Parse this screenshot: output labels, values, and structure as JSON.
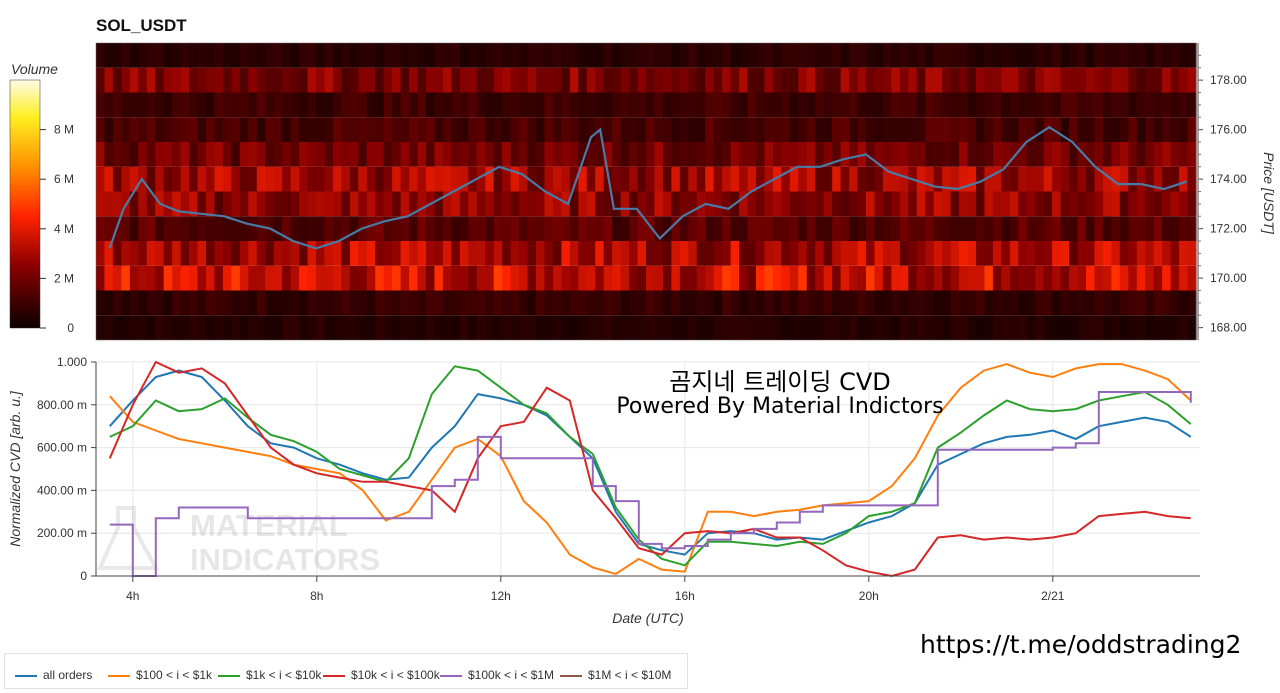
{
  "heatmap": {
    "title": "SOL_USDT",
    "colorbar_title": "Volume",
    "colorbar_ticks": [
      "0",
      "2 M",
      "4 M",
      "6 M",
      "8 M"
    ],
    "price_axis_label": "Price [USDT]",
    "price_ticks": [
      "168.00",
      "170.00",
      "172.00",
      "174.00",
      "176.00",
      "178.00"
    ]
  },
  "cvd": {
    "title_line1": "곰지네 트레이딩 CVD",
    "title_line2": "Powered By Material Indictors",
    "y_axis_label": "Normalized CVD [arb. u.]",
    "x_axis_label": "Date (UTC)",
    "y_ticks": [
      "0",
      "200.00 m",
      "400.00 m",
      "600.00 m",
      "800.00 m",
      "1.000"
    ],
    "x_ticks": [
      "4h",
      "8h",
      "12h",
      "16h",
      "20h",
      "2/21"
    ]
  },
  "watermark": {
    "line1": "MATERIAL",
    "line2": "INDICATORS"
  },
  "footer_url": "https://t.me/oddstrading2",
  "colors": {
    "all_orders": "#1f77b4",
    "s100_1k": "#ff7f0e",
    "s1k_10k": "#2ca02c",
    "s10k_100k": "#d62728",
    "s100k_1m": "#9467bd",
    "s1m_10m": "#8c564b",
    "price_line": "#4a7ba6"
  },
  "legend": [
    {
      "label": "all orders",
      "color": "#1f77b4"
    },
    {
      "label": "$100 < i < $1k",
      "color": "#ff7f0e"
    },
    {
      "label": "$1k < i < $10k",
      "color": "#2ca02c"
    },
    {
      "label": "$10k < i < $100k",
      "color": "#d62728"
    },
    {
      "label": "$100k < i < $1M",
      "color": "#9467bd"
    },
    {
      "label": "$1M < i < $10M",
      "color": "#8c564b"
    }
  ],
  "chart_data": [
    {
      "type": "heatmap",
      "title": "SOL_USDT",
      "ylabel": "Price [USDT]",
      "ylim": [
        167.5,
        179.5
      ],
      "colorbar": {
        "label": "Volume",
        "range": [
          0,
          10000000
        ]
      },
      "bands": [
        {
          "price_low": 167.5,
          "price_high": 168.5,
          "volume": 500000
        },
        {
          "price_low": 168.5,
          "price_high": 169.5,
          "volume": 800000
        },
        {
          "price_low": 169.5,
          "price_high": 170.5,
          "volume": 3500000
        },
        {
          "price_low": 170.5,
          "price_high": 171.5,
          "volume": 3000000
        },
        {
          "price_low": 171.5,
          "price_high": 172.5,
          "volume": 1500000
        },
        {
          "price_low": 172.5,
          "price_high": 173.5,
          "volume": 2500000
        },
        {
          "price_low": 173.5,
          "price_high": 174.5,
          "volume": 2800000
        },
        {
          "price_low": 174.5,
          "price_high": 175.5,
          "volume": 2000000
        },
        {
          "price_low": 175.5,
          "price_high": 176.5,
          "volume": 1200000
        },
        {
          "price_low": 176.5,
          "price_high": 177.5,
          "volume": 1000000
        },
        {
          "price_low": 177.5,
          "price_high": 178.5,
          "volume": 2200000
        },
        {
          "price_low": 178.5,
          "price_high": 179.5,
          "volume": 600000
        }
      ],
      "price_series": {
        "name": "",
        "x_hours": [
          3.5,
          3.8,
          4.2,
          4.6,
          5.0,
          5.5,
          6.0,
          6.5,
          7.0,
          7.5,
          8.0,
          8.5,
          9.0,
          9.5,
          10.0,
          10.5,
          11.0,
          11.5,
          12.0,
          12.5,
          13.0,
          13.5,
          14.0,
          14.2,
          14.5,
          15.0,
          15.5,
          16.0,
          16.5,
          17.0,
          17.5,
          18.0,
          18.5,
          19.0,
          19.5,
          20.0,
          20.5,
          21.0,
          21.5,
          22.0,
          22.5,
          23.0,
          23.5,
          24.0,
          24.5,
          25.0,
          25.5,
          26.0,
          26.5,
          27.0
        ],
        "price": [
          171.2,
          172.8,
          174.0,
          173.0,
          172.7,
          172.6,
          172.5,
          172.2,
          172.0,
          171.5,
          171.2,
          171.5,
          172.0,
          172.3,
          172.5,
          173.0,
          173.5,
          174.0,
          174.5,
          174.2,
          173.5,
          173.0,
          175.7,
          176.0,
          172.8,
          172.8,
          171.6,
          172.5,
          173.0,
          172.8,
          173.5,
          174.0,
          174.5,
          174.5,
          174.8,
          175.0,
          174.3,
          174.0,
          173.7,
          173.6,
          173.9,
          174.4,
          175.5,
          176.1,
          175.5,
          174.5,
          173.8,
          173.8,
          173.6,
          173.9
        ]
      }
    },
    {
      "type": "line",
      "title": "곰지네 트레이딩 CVD",
      "subtitle": "Powered By Material Indictors",
      "xlabel": "Date (UTC)",
      "ylabel": "Normalized CVD [arb. u.]",
      "ylim": [
        0,
        1.0
      ],
      "x_ticks": [
        "4h",
        "8h",
        "12h",
        "16h",
        "20h",
        "2/21"
      ],
      "x_hours": [
        3.5,
        4.0,
        4.5,
        5.0,
        5.5,
        6.0,
        6.5,
        7.0,
        7.5,
        8.0,
        8.5,
        9.0,
        9.5,
        10.0,
        10.5,
        11.0,
        11.5,
        12.0,
        12.5,
        13.0,
        13.5,
        14.0,
        14.5,
        15.0,
        15.5,
        16.0,
        16.5,
        17.0,
        17.5,
        18.0,
        18.5,
        19.0,
        19.5,
        20.0,
        20.5,
        21.0,
        21.5,
        22.0,
        22.5,
        23.0,
        23.5,
        24.0,
        24.5,
        25.0,
        25.5,
        26.0,
        26.5,
        27.0
      ],
      "series": [
        {
          "name": "all orders",
          "values": [
            0.7,
            0.82,
            0.93,
            0.96,
            0.93,
            0.82,
            0.7,
            0.62,
            0.6,
            0.55,
            0.52,
            0.48,
            0.45,
            0.46,
            0.6,
            0.7,
            0.85,
            0.83,
            0.8,
            0.75,
            0.65,
            0.55,
            0.3,
            0.15,
            0.12,
            0.1,
            0.2,
            0.21,
            0.2,
            0.17,
            0.18,
            0.17,
            0.21,
            0.25,
            0.28,
            0.34,
            0.52,
            0.57,
            0.62,
            0.65,
            0.66,
            0.68,
            0.64,
            0.7,
            0.72,
            0.74,
            0.72,
            0.65
          ]
        },
        {
          "name": "$100 < i < $1k",
          "values": [
            0.84,
            0.72,
            0.68,
            0.64,
            0.62,
            0.6,
            0.58,
            0.56,
            0.52,
            0.5,
            0.48,
            0.4,
            0.26,
            0.3,
            0.45,
            0.6,
            0.64,
            0.56,
            0.35,
            0.25,
            0.1,
            0.04,
            0.01,
            0.08,
            0.03,
            0.02,
            0.3,
            0.3,
            0.28,
            0.3,
            0.31,
            0.33,
            0.34,
            0.35,
            0.42,
            0.55,
            0.75,
            0.88,
            0.96,
            0.99,
            0.95,
            0.93,
            0.97,
            0.99,
            0.99,
            0.96,
            0.92,
            0.82
          ]
        },
        {
          "name": "$1k < i < $10k",
          "values": [
            0.65,
            0.7,
            0.82,
            0.77,
            0.78,
            0.83,
            0.74,
            0.66,
            0.63,
            0.58,
            0.5,
            0.47,
            0.44,
            0.55,
            0.85,
            0.98,
            0.96,
            0.88,
            0.8,
            0.76,
            0.65,
            0.57,
            0.32,
            0.17,
            0.08,
            0.05,
            0.16,
            0.16,
            0.15,
            0.14,
            0.16,
            0.15,
            0.2,
            0.28,
            0.3,
            0.34,
            0.6,
            0.67,
            0.75,
            0.82,
            0.78,
            0.77,
            0.78,
            0.82,
            0.84,
            0.86,
            0.8,
            0.71
          ]
        },
        {
          "name": "$10k < i < $100k",
          "values": [
            0.55,
            0.8,
            1.0,
            0.95,
            0.97,
            0.9,
            0.75,
            0.6,
            0.52,
            0.48,
            0.46,
            0.44,
            0.44,
            0.42,
            0.4,
            0.3,
            0.55,
            0.7,
            0.72,
            0.88,
            0.82,
            0.4,
            0.27,
            0.13,
            0.1,
            0.2,
            0.21,
            0.2,
            0.22,
            0.18,
            0.18,
            0.12,
            0.05,
            0.02,
            0.0,
            0.03,
            0.18,
            0.19,
            0.17,
            0.18,
            0.17,
            0.18,
            0.2,
            0.28,
            0.29,
            0.3,
            0.28,
            0.27
          ]
        },
        {
          "name": "$100k < i < $1M",
          "values": [
            0.24,
            0.0,
            0.27,
            0.32,
            0.32,
            0.32,
            0.27,
            0.27,
            0.27,
            0.27,
            0.27,
            0.27,
            0.27,
            0.27,
            0.42,
            0.45,
            0.65,
            0.55,
            0.55,
            0.55,
            0.55,
            0.42,
            0.35,
            0.15,
            0.13,
            0.14,
            0.17,
            0.2,
            0.22,
            0.25,
            0.3,
            0.33,
            0.33,
            0.33,
            0.33,
            0.33,
            0.59,
            0.59,
            0.59,
            0.59,
            0.59,
            0.6,
            0.62,
            0.86,
            0.86,
            0.86,
            0.86,
            0.81
          ]
        },
        {
          "name": "$1M < i < $10M",
          "values": []
        }
      ]
    }
  ]
}
